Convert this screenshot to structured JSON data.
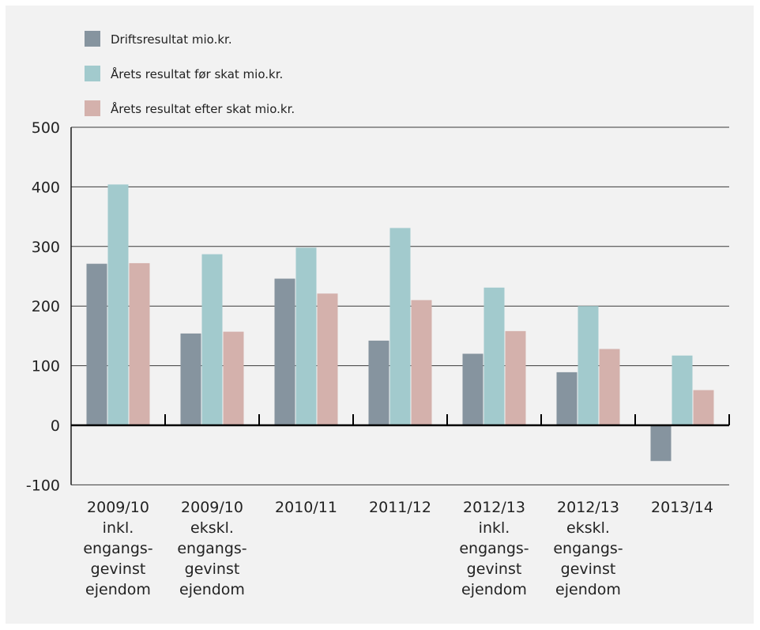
{
  "chart_data": {
    "type": "bar",
    "categories": [
      [
        "2009/10",
        "inkl.",
        "engangs-",
        "gevinst",
        "ejendom"
      ],
      [
        "2009/10",
        "ekskl.",
        "engangs-",
        "gevinst",
        "ejendom"
      ],
      [
        "2010/11"
      ],
      [
        "2011/12"
      ],
      [
        "2012/13",
        "inkl.",
        "engangs-",
        "gevinst",
        "ejendom"
      ],
      [
        "2012/13",
        "ekskl.",
        "engangs-",
        "gevinst",
        "ejendom"
      ],
      [
        "2013/14"
      ]
    ],
    "series": [
      {
        "name": "Driftsresultat mio.kr.",
        "color": "#86949f",
        "values": [
          271,
          154,
          246,
          142,
          120,
          89,
          -60
        ]
      },
      {
        "name": "Årets resultat før skat mio.kr.",
        "color": "#a2cacd",
        "values": [
          404,
          287,
          298,
          331,
          231,
          200,
          117
        ]
      },
      {
        "name": "Årets resultat efter skat mio.kr.",
        "color": "#d4b1ac",
        "values": [
          272,
          157,
          221,
          210,
          158,
          128,
          59
        ]
      }
    ],
    "ylim": [
      -100,
      500
    ],
    "yticks": [
      -100,
      0,
      100,
      200,
      300,
      400,
      500
    ],
    "grid": true,
    "legend": "top-left"
  }
}
